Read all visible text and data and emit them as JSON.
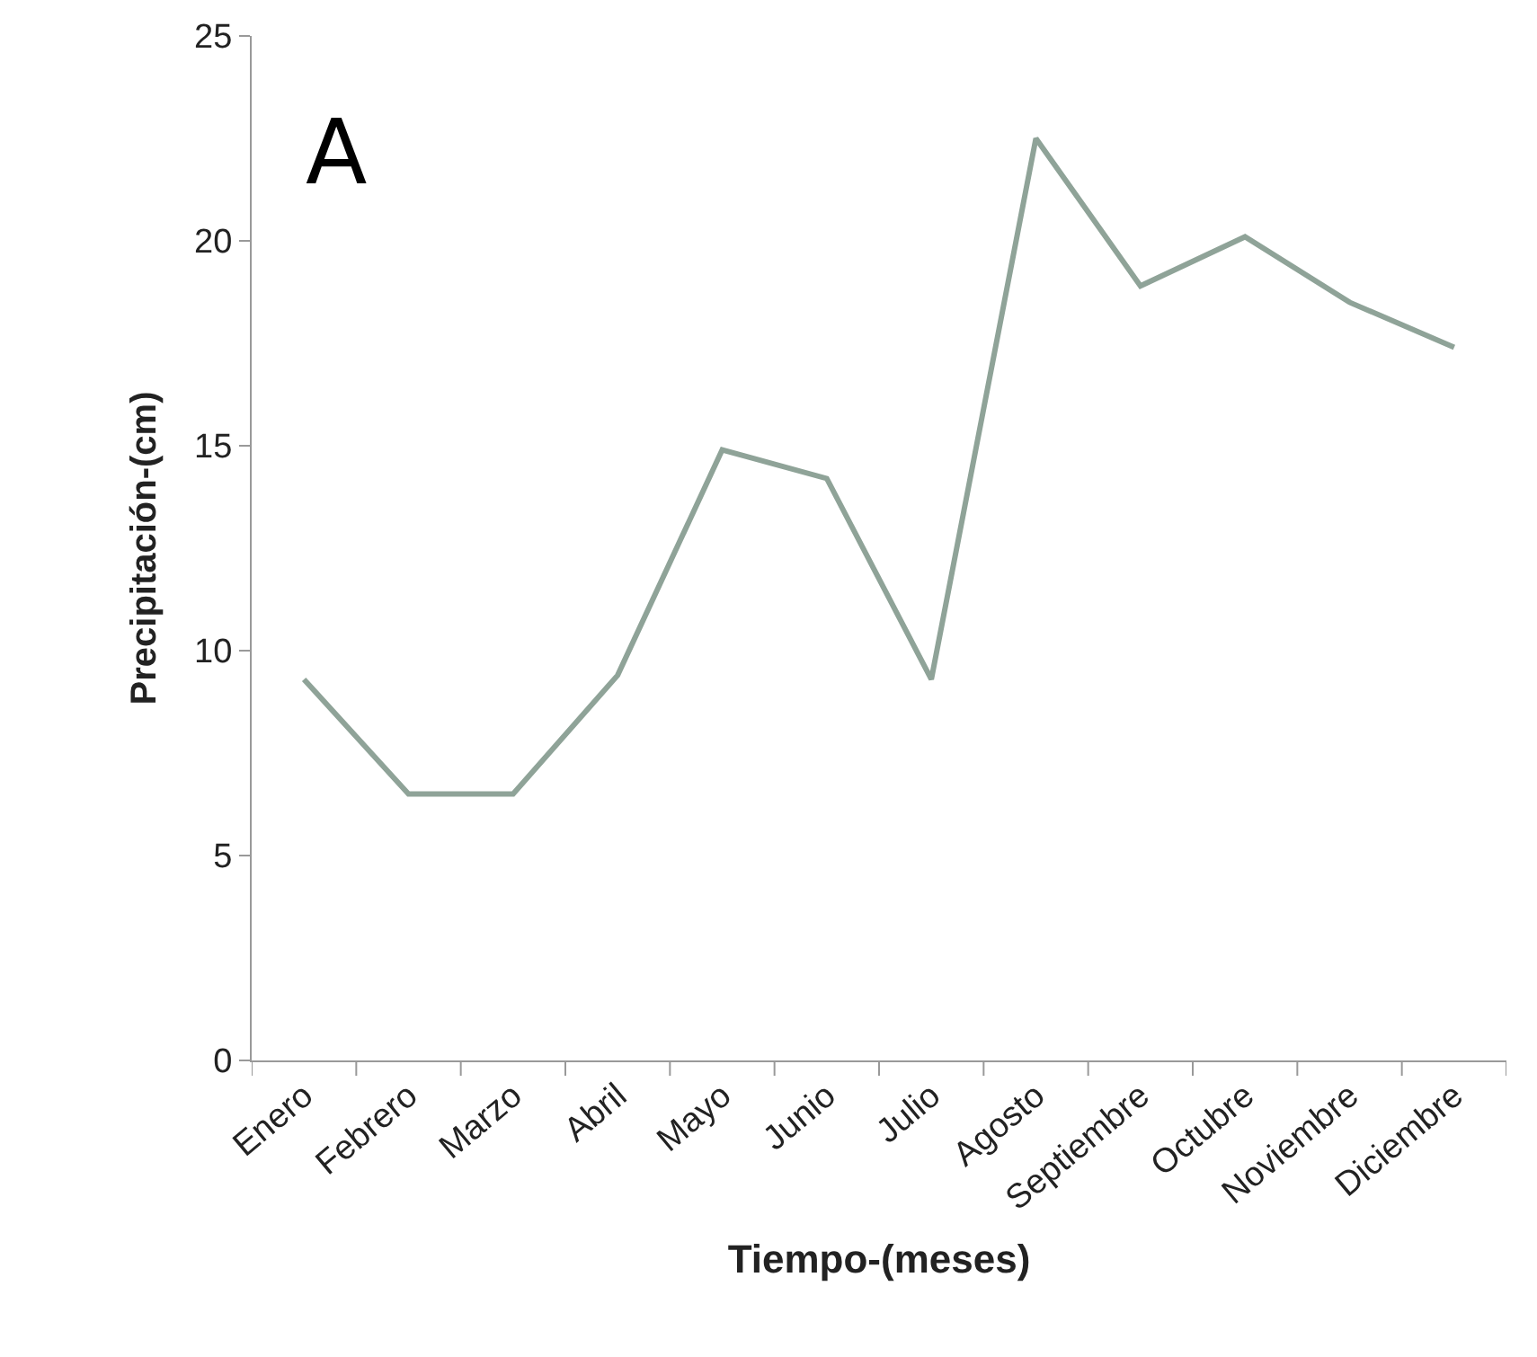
{
  "chart_data": {
    "type": "line",
    "categories": [
      "Enero",
      "Febrero",
      "Marzo",
      "Abril",
      "Mayo",
      "Junio",
      "Julio",
      "Agosto",
      "Septiembre",
      "Octubre",
      "Noviembre",
      "Diciembre"
    ],
    "series": [
      {
        "color": "#8fa398",
        "values": [
          9.3,
          6.5,
          6.5,
          9.4,
          14.9,
          14.2,
          9.3,
          22.5,
          18.9,
          20.1,
          18.5,
          17.4
        ]
      }
    ],
    "xlabel": "Tiempo-(meses)",
    "ylabel": "Precipitación-(cm)",
    "ylim": [
      0,
      25
    ],
    "yticks": [
      0,
      5,
      10,
      15,
      20,
      25
    ],
    "annotations": [
      "A"
    ],
    "marker": "none",
    "line_style": "solid"
  }
}
